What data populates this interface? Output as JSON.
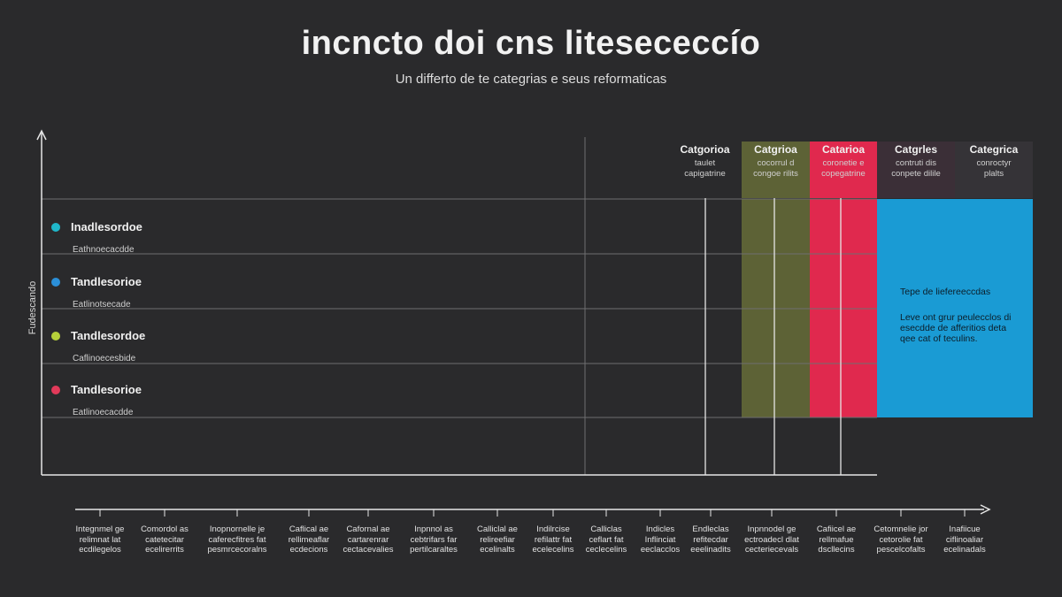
{
  "chart_data": {
    "type": "table",
    "title": "incncto doi cns litesececcío",
    "subtitle": "Un differto de te categrias e seus reformaticas",
    "ylabel": "Fudescando",
    "rows": [
      {
        "title": "Inadlesordoe",
        "sub": "Eathnoecacdde",
        "color": "#1fb6c9"
      },
      {
        "title": "Tandlesorioe",
        "sub": "Eatlinotsecade",
        "color": "#2b8fd8"
      },
      {
        "title": "Tandlesordoe",
        "sub": "Caflinoecesbide",
        "color": "#b5cf3a"
      },
      {
        "title": "Tandlesorioe",
        "sub": "Eatlinoecacdde",
        "color": "#e23a5a"
      }
    ],
    "categories": [
      {
        "name": "Catgorioa",
        "desc": [
          "taulet",
          "capigatrine"
        ],
        "color": "#2a2a2c"
      },
      {
        "name": "Catgrioa",
        "desc": [
          "cocorrul d",
          "congoe rilits"
        ],
        "color": "#5d6236"
      },
      {
        "name": "Catarioa",
        "desc": [
          "coronetie e",
          "copegatrine"
        ],
        "color": "#e0294e"
      },
      {
        "name": "Catgrles",
        "desc": [
          "contruti dis",
          "conpete dilile"
        ],
        "color": "#3b2f37"
      },
      {
        "name": "Categrica",
        "desc": [
          "conroctyr",
          "plalts"
        ],
        "color": "#353337"
      }
    ],
    "info": {
      "title": "Tepe de liefereeccdas",
      "text": "Leve ont grur peulecclos di esecdde de afferitios deta qee cat of teculins."
    },
    "x_categories": [
      [
        "Integnmel ge",
        "relimnat lat",
        "ecdilegelos"
      ],
      [
        "Comordol as",
        "catetecitar",
        "ecelirerrits"
      ],
      [
        "Inopnornelle je",
        "caferecfitres fat",
        "pesmrcecoralns"
      ],
      [
        "Caflical ae",
        "rellimeaflar",
        "ecdecions"
      ],
      [
        "Cafornal ae",
        "cartarenrar",
        "cectacevalies"
      ],
      [
        "Inpnnol as",
        "cebtrifars far",
        "pertilcaraltes"
      ],
      [
        "Calliclal ae",
        "relireefiar",
        "ecelinalts"
      ],
      [
        "Indilrcise",
        "refilattr fat",
        "ecelecelins"
      ],
      [
        "Calliclas",
        "ceflart fat",
        "ceclecelins"
      ],
      [
        "Indicles",
        "Inflinciat",
        "eeclacclos"
      ],
      [
        "Endleclas",
        "refitecdar",
        "eeelinadits"
      ],
      [
        "Inpnnodel ge",
        "ectroadecl dlat",
        "cecteriecevals"
      ],
      [
        "Cafiicel ae",
        "rellmafue",
        "dscllecins"
      ],
      [
        "Cetomnelie jor",
        "cetorolie fat",
        "pescelcofalts"
      ],
      [
        "Inafiicue",
        "ciflinoaliar",
        "ecelinadals"
      ]
    ]
  }
}
